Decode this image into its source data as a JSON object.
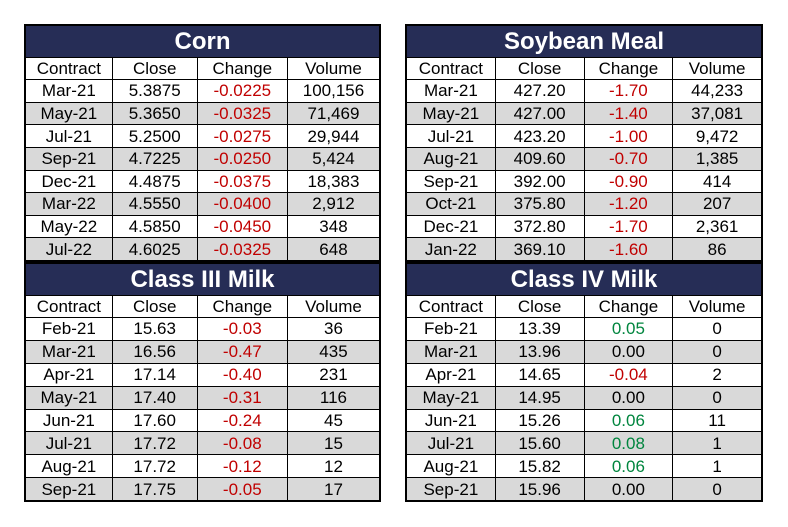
{
  "colors": {
    "header_bg": "#262d56",
    "header_text": "#ffffff",
    "row_alt": "#d9d9d9",
    "negative": "#c00000",
    "positive": "#00853e",
    "neutral": "#000000"
  },
  "tables": [
    {
      "title": "Corn",
      "columns": [
        "Contract",
        "Close",
        "Change",
        "Volume"
      ],
      "rows": [
        [
          "Mar-21",
          "5.3875",
          "-0.0225",
          "100,156"
        ],
        [
          "May-21",
          "5.3650",
          "-0.0325",
          "71,469"
        ],
        [
          "Jul-21",
          "5.2500",
          "-0.0275",
          "29,944"
        ],
        [
          "Sep-21",
          "4.7225",
          "-0.0250",
          "5,424"
        ],
        [
          "Dec-21",
          "4.4875",
          "-0.0375",
          "18,383"
        ],
        [
          "Mar-22",
          "4.5550",
          "-0.0400",
          "2,912"
        ],
        [
          "May-22",
          "4.5850",
          "-0.0450",
          "348"
        ],
        [
          "Jul-22",
          "4.6025",
          "-0.0325",
          "648"
        ]
      ]
    },
    {
      "title": "Soybean Meal",
      "columns": [
        "Contract",
        "Close",
        "Change",
        "Volume"
      ],
      "rows": [
        [
          "Mar-21",
          "427.20",
          "-1.70",
          "44,233"
        ],
        [
          "May-21",
          "427.00",
          "-1.40",
          "37,081"
        ],
        [
          "Jul-21",
          "423.20",
          "-1.00",
          "9,472"
        ],
        [
          "Aug-21",
          "409.60",
          "-0.70",
          "1,385"
        ],
        [
          "Sep-21",
          "392.00",
          "-0.90",
          "414"
        ],
        [
          "Oct-21",
          "375.80",
          "-1.20",
          "207"
        ],
        [
          "Dec-21",
          "372.80",
          "-1.70",
          "2,361"
        ],
        [
          "Jan-22",
          "369.10",
          "-1.60",
          "86"
        ]
      ]
    },
    {
      "title": "Class III Milk",
      "columns": [
        "Contract",
        "Close",
        "Change",
        "Volume"
      ],
      "rows": [
        [
          "Feb-21",
          "15.63",
          "-0.03",
          "36"
        ],
        [
          "Mar-21",
          "16.56",
          "-0.47",
          "435"
        ],
        [
          "Apr-21",
          "17.14",
          "-0.40",
          "231"
        ],
        [
          "May-21",
          "17.40",
          "-0.31",
          "116"
        ],
        [
          "Jun-21",
          "17.60",
          "-0.24",
          "45"
        ],
        [
          "Jul-21",
          "17.72",
          "-0.08",
          "15"
        ],
        [
          "Aug-21",
          "17.72",
          "-0.12",
          "12"
        ],
        [
          "Sep-21",
          "17.75",
          "-0.05",
          "17"
        ]
      ]
    },
    {
      "title": "Class IV Milk",
      "columns": [
        "Contract",
        "Close",
        "Change",
        "Volume"
      ],
      "rows": [
        [
          "Feb-21",
          "13.39",
          "0.05",
          "0"
        ],
        [
          "Mar-21",
          "13.96",
          "0.00",
          "0"
        ],
        [
          "Apr-21",
          "14.65",
          "-0.04",
          "2"
        ],
        [
          "May-21",
          "14.95",
          "0.00",
          "0"
        ],
        [
          "Jun-21",
          "15.26",
          "0.06",
          "11"
        ],
        [
          "Jul-21",
          "15.60",
          "0.08",
          "1"
        ],
        [
          "Aug-21",
          "15.82",
          "0.06",
          "1"
        ],
        [
          "Sep-21",
          "15.96",
          "0.00",
          "0"
        ]
      ]
    }
  ]
}
